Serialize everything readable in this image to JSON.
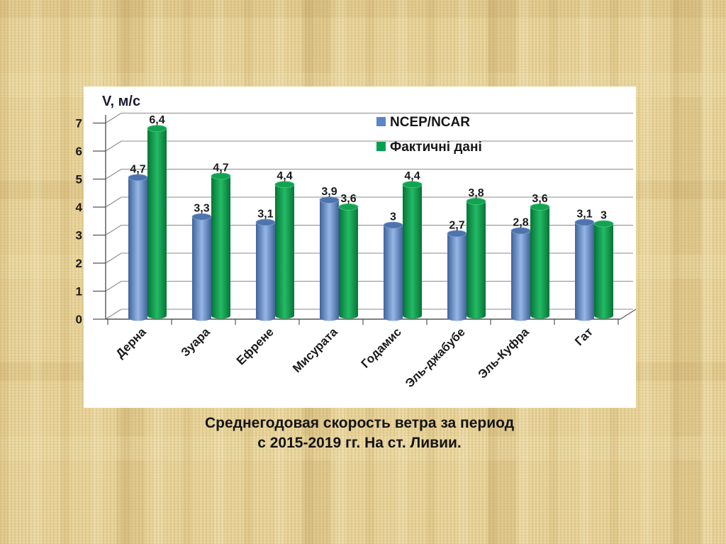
{
  "slide": {
    "background_base": "#e9d59d",
    "panel_color": "#ffffff"
  },
  "caption": {
    "line1": "Среднегодовая скорость ветра за период",
    "line2": "с 2015-2019 гг. На ст. Ливии."
  },
  "chart_data": {
    "type": "bar",
    "style": "3d-cylinder",
    "title": "",
    "axis_label": "V, м/с",
    "xlabel": "",
    "ylabel": "V, м/с",
    "categories": [
      "Дерна",
      "Зуара",
      "Ефрене",
      "Мисурата",
      "Годамис",
      "Эль-джабубе",
      "Эль-Куфра",
      "Гат"
    ],
    "series": [
      {
        "name": "NCEP/NCAR",
        "values": [
          4.7,
          3.3,
          3.1,
          3.9,
          3,
          2.7,
          2.8,
          3.1
        ],
        "labels": [
          "4,7",
          "3,3",
          "3,1",
          "3,9",
          "3",
          "2,7",
          "2,8",
          "3,1"
        ],
        "color_edge": "#41639a",
        "color_mid": "#96b6e6",
        "color_top": "#4d74ad",
        "color_top_rim": "#7f9ecf",
        "legend_color": "#5b85c8"
      },
      {
        "name": "Фактичні дані",
        "values": [
          6.4,
          4.7,
          4.4,
          3.6,
          4.4,
          3.8,
          3.6,
          3
        ],
        "labels": [
          "6,4",
          "4,7",
          "4,4",
          "3,6",
          "4,4",
          "3,8",
          "3,6",
          "3"
        ],
        "color_edge": "#067437",
        "color_mid": "#23bb65",
        "color_top": "#12a351",
        "color_top_rim": "#49c77f",
        "legend_color": "#00a24f"
      }
    ],
    "ylim": [
      0,
      7
    ],
    "yticks": [
      "0",
      "1",
      "2",
      "3",
      "4",
      "5",
      "6",
      "7"
    ],
    "grid": true,
    "grid_color": "#8c8c8c",
    "axis_color": "#555555",
    "legend_position": "top-right"
  }
}
